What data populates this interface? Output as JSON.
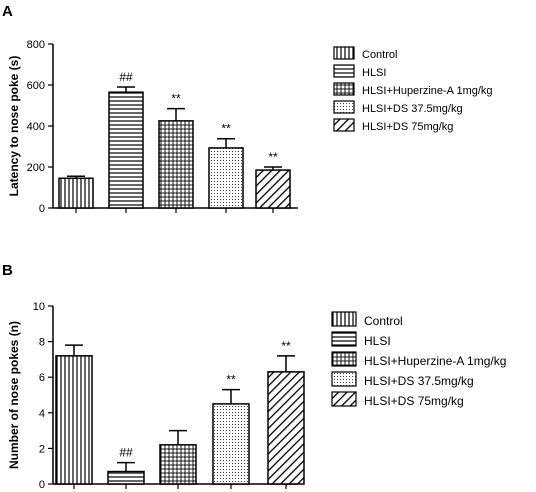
{
  "chart_data": [
    {
      "panel": "A",
      "type": "bar",
      "title": "",
      "xlabel": "",
      "ylabel": "Latency to nose poke (s)",
      "ylim": [
        0,
        800
      ],
      "yticks": [
        "0",
        "200",
        "400",
        "600",
        "800"
      ],
      "categories": [
        "Control",
        "HLSI",
        "HLSI+Huperzine-A 1mg/kg",
        "HLSI+DS 37.5mg/kg",
        "HLSI+DS 75mg/kg"
      ],
      "values": [
        145,
        565,
        425,
        293,
        185
      ],
      "error": [
        10,
        25,
        60,
        45,
        15
      ],
      "annotations": [
        "",
        "##",
        "**",
        "**",
        "**"
      ],
      "legend_position": "right"
    },
    {
      "panel": "B",
      "type": "bar",
      "title": "",
      "xlabel": "",
      "ylabel": "Number of nose pokes (n)",
      "ylim": [
        0,
        10
      ],
      "yticks": [
        "0",
        "2",
        "4",
        "6",
        "8",
        "10"
      ],
      "categories": [
        "Control",
        "HLSI",
        "HLSI+Huperzine-A 1mg/kg",
        "HLSI+DS 37.5mg/kg",
        "HLSI+DS 75mg/kg"
      ],
      "values": [
        7.2,
        0.7,
        2.2,
        4.5,
        6.3
      ],
      "error": [
        0.6,
        0.5,
        0.8,
        0.8,
        0.9
      ],
      "annotations": [
        "",
        "##",
        "",
        "**",
        "**"
      ],
      "legend_position": "right"
    }
  ],
  "colors": {
    "ink": "#000000",
    "background": "#ffffff"
  }
}
